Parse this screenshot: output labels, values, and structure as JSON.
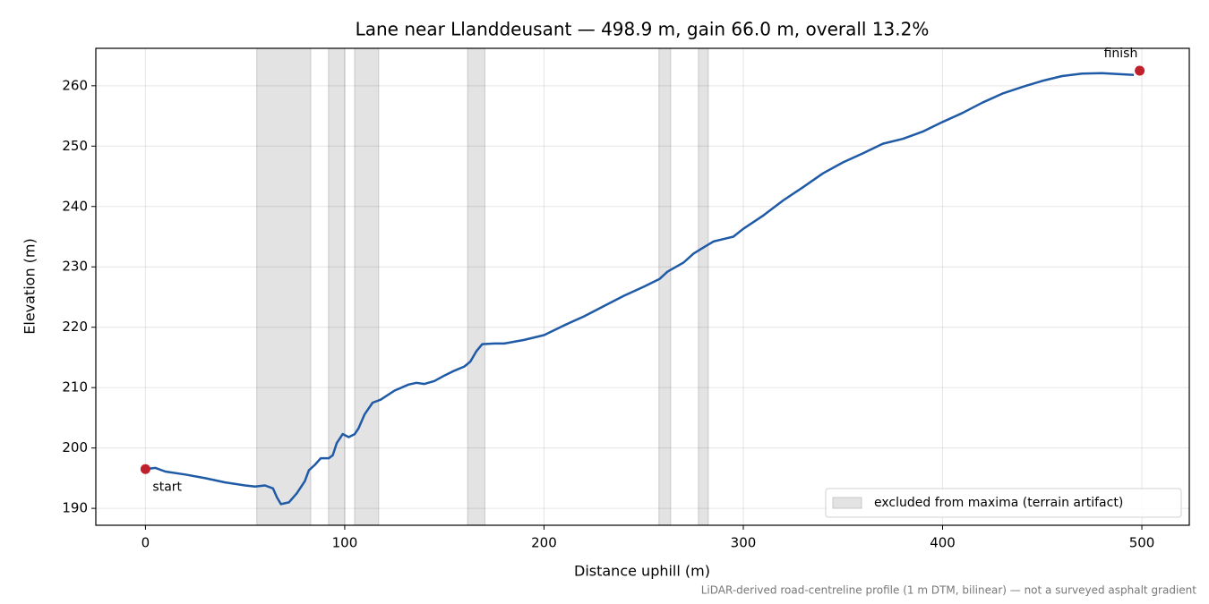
{
  "chart_data": {
    "type": "line",
    "title": "Lane near Llanddeusant — 498.9 m, gain 66.0 m, overall 13.2%",
    "x_label": "Distance uphill (m)",
    "y_label": "Elevation (m)",
    "footnote": "LiDAR-derived road-centreline profile (1 m DTM, bilinear) — not a surveyed asphalt gradient",
    "color": "#1f5aa6",
    "x": [
      0,
      5,
      10,
      20,
      30,
      40,
      50,
      55,
      60,
      64,
      66,
      68,
      72,
      76,
      80,
      82,
      85,
      88,
      92,
      94,
      96,
      99,
      102,
      105,
      107,
      110,
      114,
      118,
      125,
      132,
      136,
      140,
      145,
      150,
      155,
      160,
      163,
      166,
      169,
      175,
      180,
      190,
      200,
      210,
      220,
      230,
      240,
      250,
      258,
      262,
      270,
      275,
      280,
      285,
      290,
      295,
      300,
      310,
      320,
      330,
      340,
      350,
      360,
      370,
      380,
      390,
      400,
      410,
      420,
      430,
      440,
      450,
      460,
      470,
      480,
      490,
      496
    ],
    "values": [
      196.5,
      196.7,
      196.1,
      195.6,
      195.0,
      194.3,
      193.8,
      193.6,
      193.8,
      193.3,
      191.8,
      190.7,
      191.0,
      192.5,
      194.5,
      196.3,
      197.2,
      198.3,
      198.3,
      198.8,
      200.8,
      202.3,
      201.8,
      202.3,
      203.3,
      205.6,
      207.5,
      208.0,
      209.5,
      210.5,
      210.8,
      210.6,
      211.1,
      212.0,
      212.8,
      213.5,
      214.3,
      216.0,
      217.2,
      217.3,
      217.3,
      217.9,
      218.7,
      220.3,
      221.8,
      223.5,
      225.2,
      226.7,
      228.0,
      229.2,
      230.7,
      232.2,
      233.2,
      234.2,
      234.6,
      235.0,
      236.3,
      238.5,
      241.0,
      243.2,
      245.5,
      247.3,
      248.8,
      250.4,
      251.2,
      252.4,
      254.0,
      255.5,
      257.2,
      258.7,
      259.8,
      260.8,
      261.6,
      262.0,
      262.1,
      261.9,
      261.8
    ],
    "markers": [
      {
        "label": "start",
        "x": 0,
        "y": 196.5,
        "color": "#c0202a"
      },
      {
        "label": "finish",
        "x": 498.9,
        "y": 262.5,
        "color": "#c0202a"
      }
    ],
    "excluded_label": "excluded from maxima (terrain artifact)",
    "excluded_color": "#e3e3e3",
    "excluded": [
      [
        55.9,
        82.9
      ],
      [
        91.9,
        100.0
      ],
      [
        105.0,
        117.0
      ],
      [
        161.7,
        170.3
      ],
      [
        257.7,
        263.5
      ],
      [
        277.5,
        282.4
      ]
    ],
    "xlim": [
      -24.9,
      523.8
    ],
    "ylim": [
      187.2,
      266.2
    ],
    "xticks": [
      0,
      100,
      200,
      300,
      400,
      500
    ],
    "yticks": [
      190,
      200,
      210,
      220,
      230,
      240,
      250,
      260
    ],
    "grid": true,
    "legend": "lower right"
  }
}
